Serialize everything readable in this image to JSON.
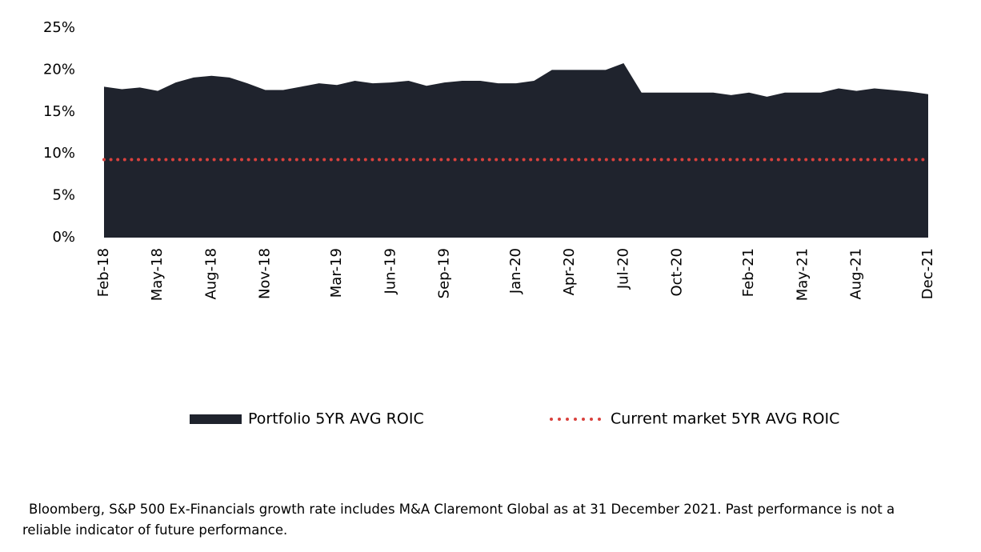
{
  "chart_data": {
    "type": "area",
    "categories": [
      "Feb-18",
      null,
      null,
      "May-18",
      null,
      null,
      "Aug-18",
      null,
      null,
      "Nov-18",
      null,
      null,
      null,
      "Mar-19",
      null,
      null,
      "Jun-19",
      null,
      null,
      "Sep-19",
      null,
      null,
      null,
      "Jan-20",
      null,
      null,
      "Apr-20",
      null,
      null,
      "Jul-20",
      null,
      null,
      "Oct-20",
      null,
      null,
      null,
      "Feb-21",
      null,
      null,
      "May-21",
      null,
      null,
      "Aug-21",
      null,
      null,
      null,
      "Dec-21"
    ],
    "series": [
      {
        "name": "Portfolio 5YR AVG ROIC",
        "color": "#1f232d",
        "values": [
          18.0,
          17.7,
          17.9,
          17.5,
          18.5,
          19.1,
          19.3,
          19.1,
          18.4,
          17.6,
          17.6,
          18.0,
          18.4,
          18.2,
          18.7,
          18.4,
          18.5,
          18.7,
          18.1,
          18.5,
          18.7,
          18.7,
          18.4,
          18.4,
          18.7,
          20.0,
          20.0,
          20.0,
          20.0,
          20.8,
          17.3,
          17.3,
          17.3,
          17.3,
          17.3,
          17.0,
          17.3,
          16.8,
          17.3,
          17.3,
          17.3,
          17.8,
          17.5,
          17.8,
          17.6,
          17.4,
          17.1
        ]
      },
      {
        "name": "Current market 5YR AVG ROIC",
        "color": "#d9413d",
        "value": 9.3
      }
    ],
    "ylim": [
      0,
      25
    ],
    "yticks": [
      {
        "value": 0,
        "label": "0%"
      },
      {
        "value": 5,
        "label": "5%"
      },
      {
        "value": 10,
        "label": "10%"
      },
      {
        "value": 15,
        "label": "15%"
      },
      {
        "value": 20,
        "label": "20%"
      },
      {
        "value": 25,
        "label": "25%"
      }
    ]
  },
  "footnote": "Bloomberg, S&P 500 Ex-Financials growth rate includes M&A Claremont Global as at 31 December 2021. Past performance is not a reliable indicator of future performance."
}
